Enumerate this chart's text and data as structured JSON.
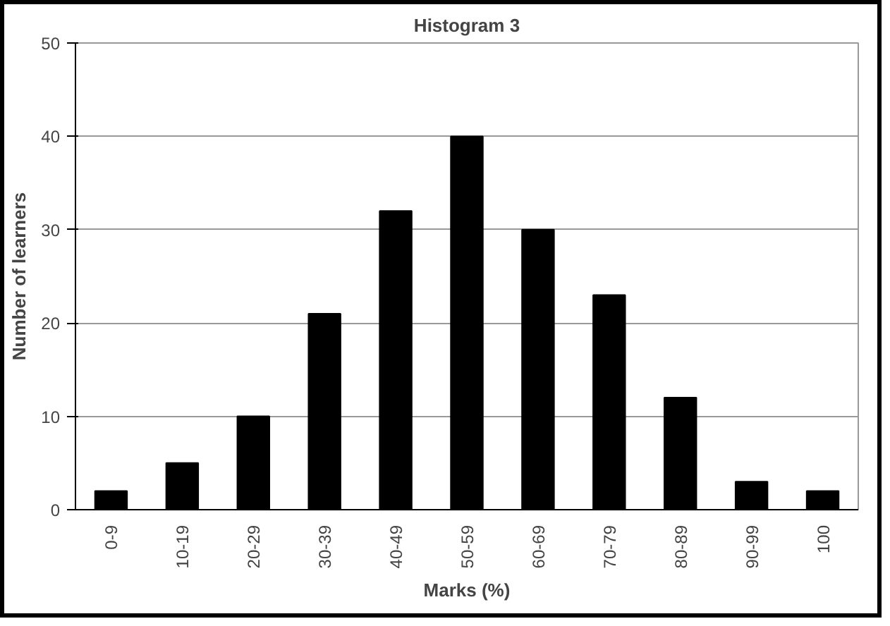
{
  "chart_data": {
    "type": "bar",
    "title": "Histogram 3",
    "xlabel": "Marks (%)",
    "ylabel": "Number of learners",
    "categories": [
      "0-9",
      "10-19",
      "20-29",
      "30-39",
      "40-49",
      "50-59",
      "60-69",
      "70-79",
      "80-89",
      "90-99",
      "100"
    ],
    "values": [
      2,
      5,
      10,
      21,
      32,
      40,
      30,
      23,
      12,
      3,
      2
    ],
    "color": "#000000",
    "ylim": [
      0,
      50
    ],
    "yticks": [
      0,
      10,
      20,
      30,
      40,
      50
    ],
    "grid": "y"
  }
}
